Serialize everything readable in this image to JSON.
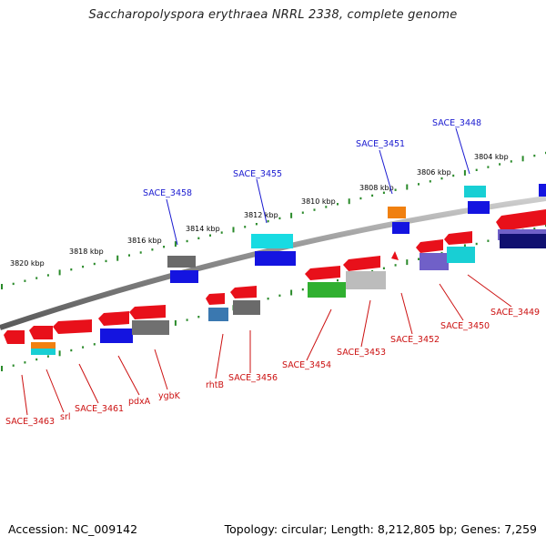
{
  "title": "Saccharopolyspora erythraea NRRL 2338, complete genome",
  "footer": {
    "accession": "Accession: NC_009142",
    "summary": "Topology: circular; Length: 8,212,805 bp; Genes: 7,259"
  },
  "scale_labels": [
    "3820 kbp",
    "3818 kbp",
    "3816 kbp",
    "3814 kbp",
    "3812 kbp",
    "3810 kbp",
    "3808 kbp",
    "3806 kbp",
    "3804 kbp"
  ],
  "top_gene_labels": [
    "SACE_3458",
    "SACE_3455",
    "SACE_3451",
    "SACE_3448"
  ],
  "bottom_gene_labels": [
    "SACE_3463",
    "srl",
    "SACE_3461",
    "pdxA",
    "ygbK",
    "rhtB",
    "SACE_3456",
    "SACE_3454",
    "SACE_3453",
    "SACE_3452",
    "SACE_3450",
    "SACE_3449"
  ],
  "colors": {
    "label_top": "#1a1ad0",
    "label_bottom": "#cc1111",
    "backbone": "#8a8a8a",
    "tick": "#2a8a2a",
    "red_gene": "#e8101a",
    "blue_gene": "#1010e0",
    "cyan_gene": "#10d8e0",
    "gray_gene": "#707070",
    "green_gene": "#30b030",
    "orange_gene": "#f08010",
    "violet_gene": "#7060c8"
  }
}
